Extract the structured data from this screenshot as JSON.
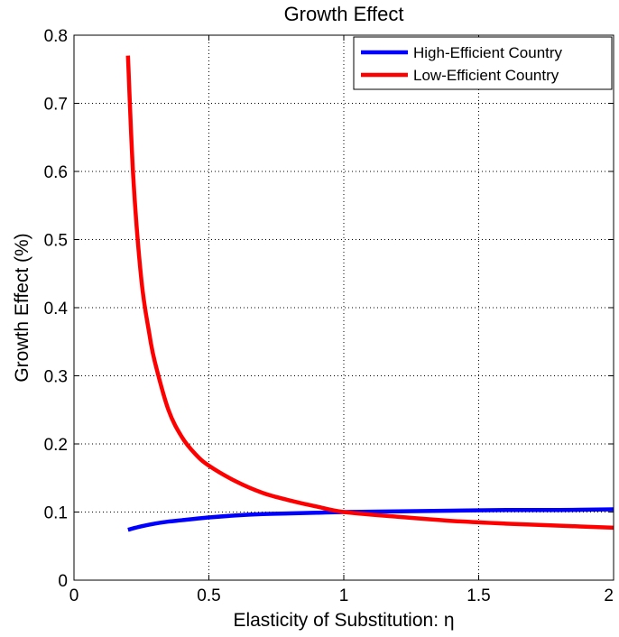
{
  "chart_data": {
    "type": "line",
    "title": "Growth Effect",
    "xlabel": "Elasticity of Substitution: η",
    "ylabel": "Growth Effect (%)",
    "xlim": [
      0,
      2
    ],
    "ylim": [
      0,
      0.8
    ],
    "xticks": [
      "0",
      "0.5",
      "1",
      "1.5",
      "2"
    ],
    "yticks": [
      "0",
      "0.1",
      "0.2",
      "0.3",
      "0.4",
      "0.5",
      "0.6",
      "0.7",
      "0.8"
    ],
    "grid": true,
    "legend_position": "top-right",
    "series": [
      {
        "name": "High-Efficient Country",
        "color": "#0000ff",
        "x": [
          0.2,
          0.25,
          0.3,
          0.35,
          0.4,
          0.5,
          0.6,
          0.7,
          0.8,
          0.9,
          1.0,
          1.2,
          1.4,
          1.6,
          1.8,
          2.0
        ],
        "y": [
          0.074,
          0.079,
          0.083,
          0.086,
          0.088,
          0.092,
          0.095,
          0.097,
          0.098,
          0.099,
          0.1,
          0.101,
          0.102,
          0.103,
          0.103,
          0.104
        ]
      },
      {
        "name": "Low-Efficient Country",
        "color": "#ff0000",
        "x": [
          0.2,
          0.22,
          0.25,
          0.28,
          0.3,
          0.35,
          0.4,
          0.45,
          0.5,
          0.6,
          0.7,
          0.8,
          0.9,
          1.0,
          1.2,
          1.4,
          1.6,
          1.8,
          2.0
        ],
        "y": [
          0.77,
          0.59,
          0.44,
          0.36,
          0.32,
          0.25,
          0.21,
          0.185,
          0.168,
          0.145,
          0.128,
          0.117,
          0.108,
          0.1,
          0.093,
          0.087,
          0.083,
          0.08,
          0.077
        ]
      }
    ]
  }
}
